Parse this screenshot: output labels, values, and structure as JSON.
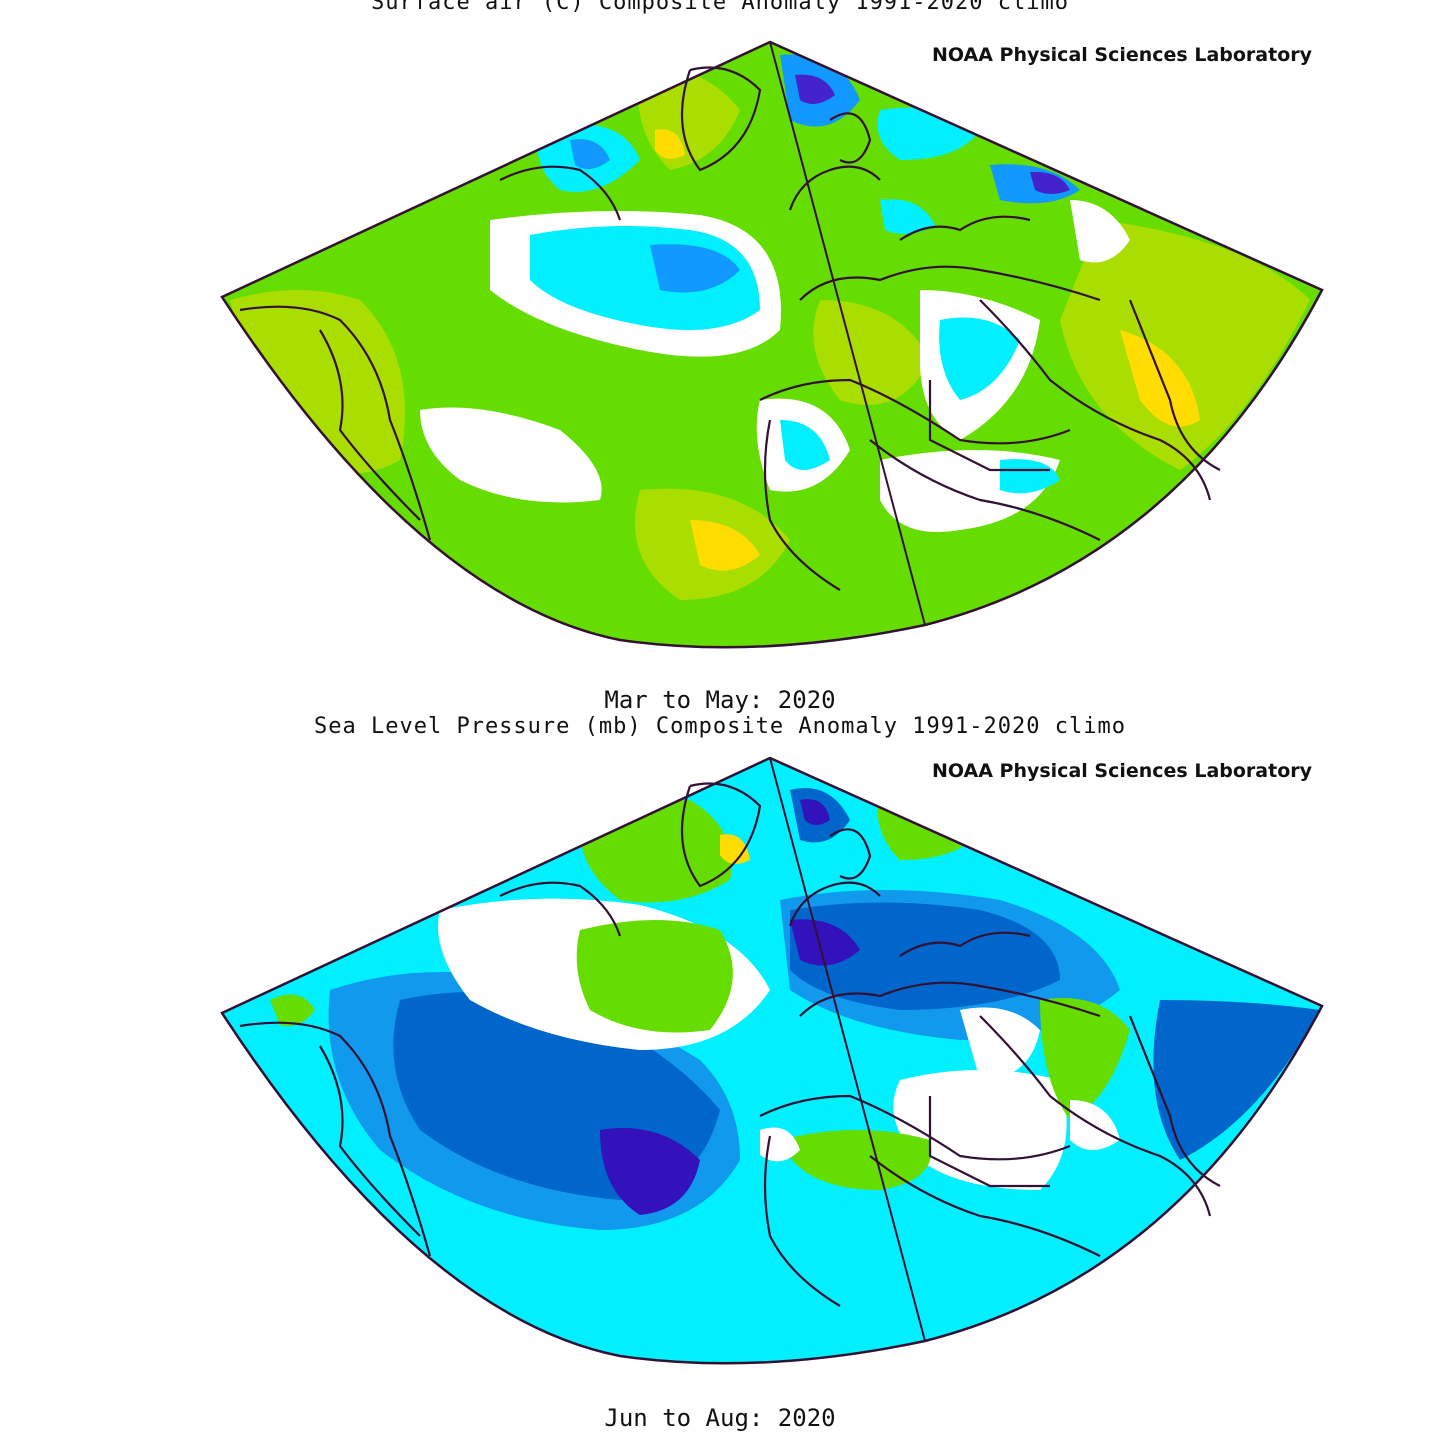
{
  "panels": [
    {
      "title": "Surface air (C) Composite Anomaly 1991-2020 climo",
      "credit": "NOAA Physical Sciences Laboratory",
      "period": "Mar to May: 2020",
      "colors": {
        "background": "#66dd00",
        "ocean_warm": "#aadd00",
        "hot": "#ffdd00",
        "cold": "#00f0ff",
        "neutral": "#ffffff",
        "deep_cold": "#1199ff",
        "very_cold": "#4422cc"
      }
    },
    {
      "title": "Sea Level Pressure (mb) Composite Anomaly 1991-2020 climo",
      "credit": "NOAA Physical Sciences Laboratory",
      "period": "Jun to Aug: 2020",
      "colors": {
        "background": "#00f0ff",
        "ocean_warm": "#66dd00",
        "hot": "#ffdd00",
        "cold": "#1199ee",
        "neutral": "#ffffff",
        "deep_cold": "#0066cc",
        "very_cold": "#3311bb"
      }
    }
  ],
  "map_style": {
    "outline_color": "#331133",
    "projection": "conic sector"
  }
}
